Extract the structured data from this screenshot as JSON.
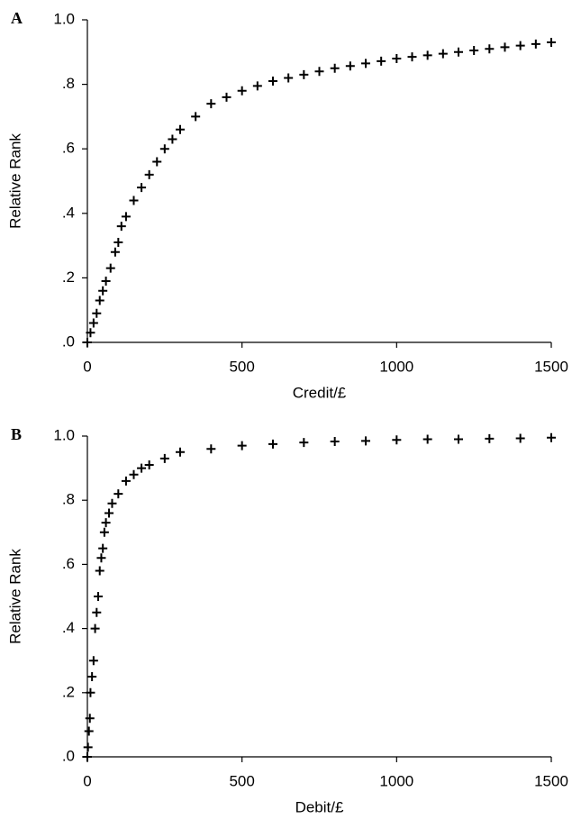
{
  "chart_data": [
    {
      "type": "scatter",
      "panel_label": "A",
      "xlabel": "Credit/£",
      "ylabel": "Relative Rank",
      "marker": "+",
      "color": "#000000",
      "xlim": [
        0,
        1500
      ],
      "ylim": [
        0,
        1
      ],
      "xticks": [
        0,
        500,
        1000,
        1500
      ],
      "yticks": [
        {
          "value": 0,
          "label": ".0"
        },
        {
          "value": 0.2,
          "label": ".2"
        },
        {
          "value": 0.4,
          "label": ".4"
        },
        {
          "value": 0.6,
          "label": ".6"
        },
        {
          "value": 0.8,
          "label": ".8"
        },
        {
          "value": 1,
          "label": "1.0"
        }
      ],
      "x": [
        0,
        10,
        20,
        30,
        40,
        50,
        60,
        75,
        90,
        100,
        110,
        125,
        150,
        175,
        200,
        225,
        250,
        275,
        300,
        350,
        400,
        450,
        500,
        550,
        600,
        650,
        700,
        750,
        800,
        850,
        900,
        950,
        1000,
        1050,
        1100,
        1150,
        1200,
        1250,
        1300,
        1350,
        1400,
        1450,
        1500
      ],
      "values": [
        0.0,
        0.03,
        0.06,
        0.09,
        0.13,
        0.16,
        0.19,
        0.23,
        0.28,
        0.31,
        0.36,
        0.39,
        0.44,
        0.48,
        0.52,
        0.56,
        0.6,
        0.63,
        0.66,
        0.7,
        0.74,
        0.76,
        0.78,
        0.795,
        0.81,
        0.82,
        0.83,
        0.84,
        0.85,
        0.857,
        0.865,
        0.872,
        0.88,
        0.885,
        0.89,
        0.895,
        0.9,
        0.905,
        0.91,
        0.915,
        0.92,
        0.925,
        0.93
      ]
    },
    {
      "type": "scatter",
      "panel_label": "B",
      "xlabel": "Debit/£",
      "ylabel": "Relative Rank",
      "marker": "+",
      "color": "#000000",
      "xlim": [
        0,
        1500
      ],
      "ylim": [
        0,
        1
      ],
      "xticks": [
        0,
        500,
        1000,
        1500
      ],
      "yticks": [
        {
          "value": 0,
          "label": ".0"
        },
        {
          "value": 0.2,
          "label": ".2"
        },
        {
          "value": 0.4,
          "label": ".4"
        },
        {
          "value": 0.6,
          "label": ".6"
        },
        {
          "value": 0.8,
          "label": ".8"
        },
        {
          "value": 1,
          "label": "1.0"
        }
      ],
      "x": [
        0,
        2,
        5,
        8,
        10,
        15,
        20,
        25,
        30,
        35,
        40,
        45,
        50,
        55,
        60,
        70,
        80,
        100,
        125,
        150,
        175,
        200,
        250,
        300,
        400,
        500,
        600,
        700,
        800,
        900,
        1000,
        1100,
        1200,
        1300,
        1400,
        1500
      ],
      "values": [
        0.0,
        0.03,
        0.08,
        0.12,
        0.2,
        0.25,
        0.3,
        0.4,
        0.45,
        0.5,
        0.58,
        0.62,
        0.65,
        0.7,
        0.73,
        0.76,
        0.79,
        0.82,
        0.86,
        0.88,
        0.9,
        0.91,
        0.93,
        0.95,
        0.96,
        0.97,
        0.975,
        0.98,
        0.983,
        0.985,
        0.988,
        0.99,
        0.99,
        0.992,
        0.993,
        0.995
      ]
    }
  ]
}
